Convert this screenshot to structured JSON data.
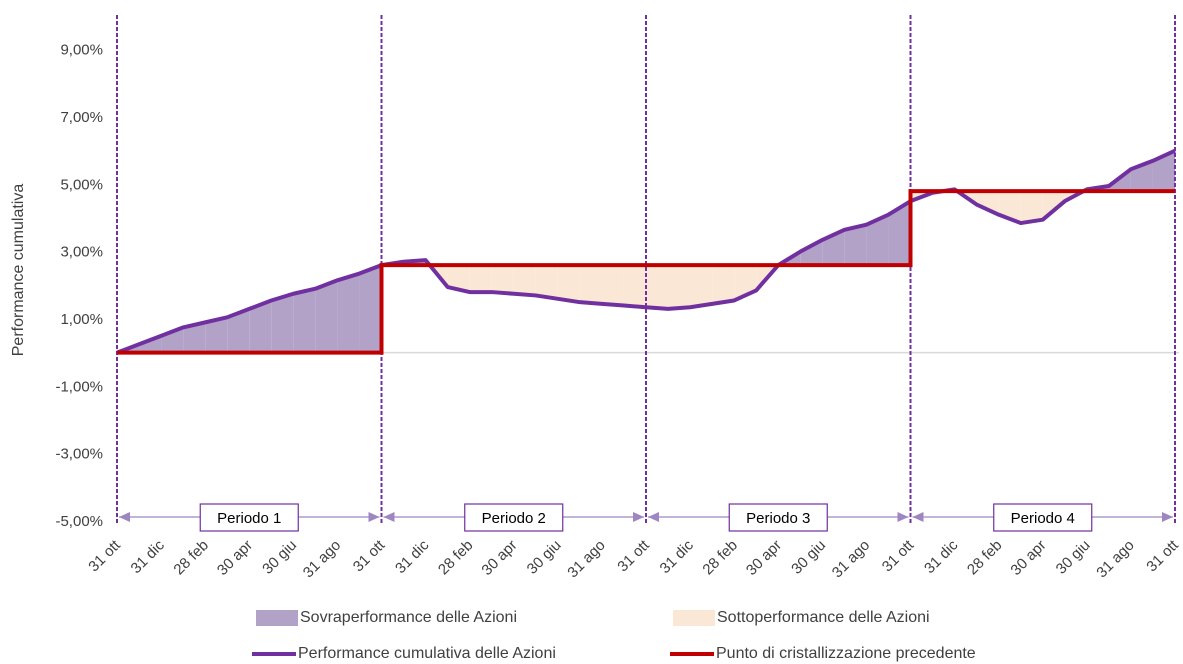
{
  "colors": {
    "over_fill": "#b3a2c8",
    "under_fill": "#fbe7d5",
    "performance_line": "#7030a0",
    "crystallization_line": "#c00000",
    "period_bracket": "#9e86c0",
    "zero_line": "#d9d9d9"
  },
  "chart_data": {
    "type": "area",
    "ylabel": "Performance cumulativa",
    "xlabel": "",
    "ylim": [
      -5.0,
      10.0
    ],
    "y_ticks": [
      -5,
      -3,
      -1,
      1,
      3,
      5,
      7,
      9
    ],
    "y_tick_labels": [
      "-5,00%",
      "-3,00%",
      "-1,00%",
      "1,00%",
      "3,00%",
      "5,00%",
      "7,00%",
      "9,00%"
    ],
    "x_tick_labels": [
      "31 ott",
      "31 dic",
      "28 feb",
      "30 apr",
      "30 giu",
      "31 ago",
      "31 ott",
      "31 dic",
      "28 feb",
      "30 apr",
      "30 giu",
      "31 ago",
      "31 ott",
      "31 dic",
      "28 feb",
      "30 apr",
      "30 giu",
      "31 ago",
      "31 ott",
      "31 dic",
      "28 feb",
      "30 apr",
      "30 giu",
      "31 ago",
      "31 ott"
    ],
    "x_months": [
      0,
      2,
      4,
      6,
      8,
      10,
      12,
      14,
      16,
      18,
      20,
      22,
      24,
      26,
      28,
      30,
      32,
      34,
      36,
      38,
      40,
      42,
      44,
      46,
      48
    ],
    "period_boundaries_months": [
      0,
      12,
      24,
      36,
      48
    ],
    "periods": [
      "Periodo 1",
      "Periodo 2",
      "Periodo 3",
      "Periodo 4"
    ],
    "series": [
      {
        "name": "Performance cumulativa delle Azioni",
        "x_months": [
          0,
          1,
          2,
          3,
          4,
          5,
          6,
          7,
          8,
          9,
          10,
          11,
          12,
          13,
          14,
          15,
          16,
          17,
          18,
          19,
          20,
          21,
          22,
          23,
          24,
          25,
          26,
          27,
          28,
          29,
          30,
          31,
          32,
          33,
          34,
          35,
          36,
          37,
          38,
          39,
          40,
          41,
          42,
          43,
          44,
          45,
          46,
          47,
          48
        ],
        "values": [
          0.0,
          0.25,
          0.5,
          0.75,
          0.9,
          1.05,
          1.3,
          1.55,
          1.75,
          1.9,
          2.15,
          2.35,
          2.6,
          2.7,
          2.75,
          1.95,
          1.8,
          1.8,
          1.75,
          1.7,
          1.6,
          1.5,
          1.45,
          1.4,
          1.35,
          1.3,
          1.35,
          1.45,
          1.55,
          1.85,
          2.6,
          3.0,
          3.35,
          3.65,
          3.8,
          4.1,
          4.5,
          4.75,
          4.85,
          4.4,
          4.1,
          3.85,
          3.95,
          4.5,
          4.85,
          4.95,
          5.45,
          5.7,
          6.0
        ]
      },
      {
        "name": "Punto di cristallizzazione precedente",
        "x_months": [
          0,
          12,
          12,
          24,
          36,
          36,
          48
        ],
        "values": [
          0.0,
          0.0,
          2.6,
          2.6,
          2.6,
          4.8,
          4.8
        ]
      }
    ],
    "legend": [
      {
        "label": "Sovraperformance delle Azioni",
        "kind": "area",
        "color": "#b3a2c8"
      },
      {
        "label": "Sottoperformance delle Azioni",
        "kind": "area",
        "color": "#fbe7d5"
      },
      {
        "label": "Performance cumulativa delle Azioni",
        "kind": "line",
        "color": "#7030a0"
      },
      {
        "label": "Punto di cristallizzazione precedente",
        "kind": "line",
        "color": "#c00000"
      }
    ],
    "legend_position": "bottom",
    "grid": false
  }
}
